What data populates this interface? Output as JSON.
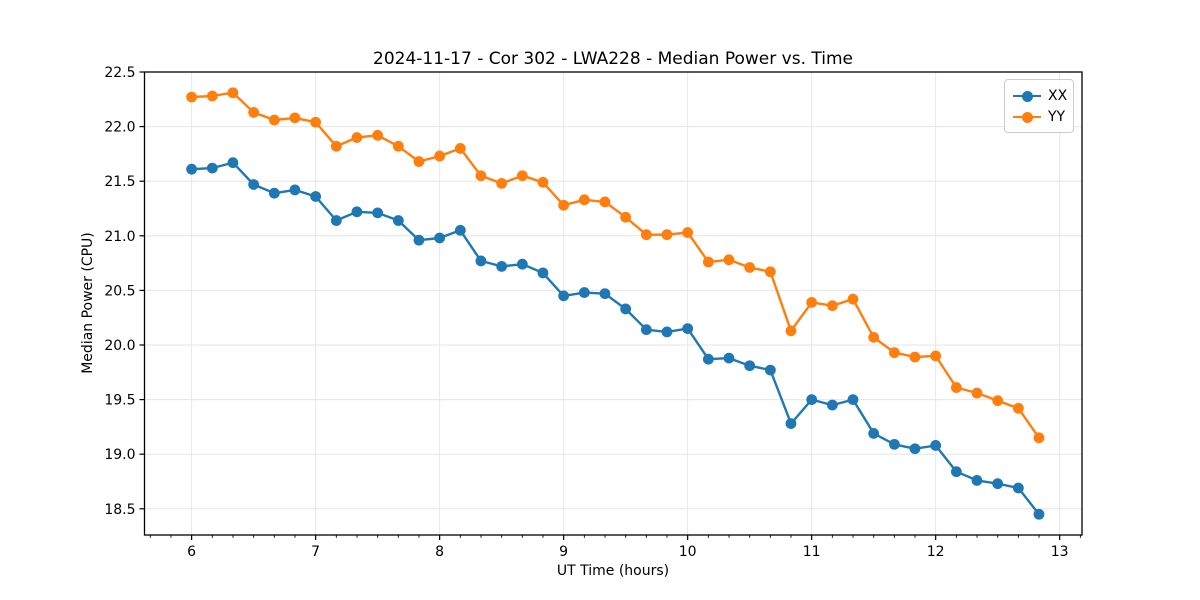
{
  "chart_data": {
    "type": "line",
    "title": "2024-11-17 - Cor 302 - LWA228 - Median Power vs. Time",
    "xlabel": "UT Time (hours)",
    "ylabel": "Median Power (CPU)",
    "xlim": [
      5.62,
      13.18
    ],
    "ylim": [
      18.26,
      22.5
    ],
    "xticks": [
      6,
      7,
      8,
      9,
      10,
      11,
      12,
      13
    ],
    "yticks": [
      18.5,
      19.0,
      19.5,
      20.0,
      20.5,
      21.0,
      21.5,
      22.0,
      22.5
    ],
    "x_minor_step": 0.16667,
    "grid": true,
    "legend_position": "upper right",
    "background_color": "#ffffff",
    "grid_color": "#e6e6e6",
    "spine_color": "#000000",
    "x": [
      6.0,
      6.167,
      6.333,
      6.5,
      6.667,
      6.833,
      7.0,
      7.167,
      7.333,
      7.5,
      7.667,
      7.833,
      8.0,
      8.167,
      8.333,
      8.5,
      8.667,
      8.833,
      9.0,
      9.167,
      9.333,
      9.5,
      9.667,
      9.833,
      10.0,
      10.167,
      10.333,
      10.5,
      10.667,
      10.833,
      11.0,
      11.167,
      11.333,
      11.5,
      11.667,
      11.833,
      12.0,
      12.167,
      12.333,
      12.5,
      12.667,
      12.833
    ],
    "series": [
      {
        "name": "XX",
        "color": "#1f77b4",
        "values": [
          21.61,
          21.62,
          21.67,
          21.47,
          21.39,
          21.42,
          21.36,
          21.14,
          21.22,
          21.21,
          21.14,
          20.96,
          20.98,
          21.05,
          20.77,
          20.72,
          20.74,
          20.66,
          20.45,
          20.48,
          20.47,
          20.33,
          20.14,
          20.12,
          20.15,
          19.87,
          19.88,
          19.81,
          19.77,
          19.28,
          19.5,
          19.45,
          19.5,
          19.19,
          19.09,
          19.05,
          19.08,
          18.84,
          18.76,
          18.73,
          18.69,
          18.45
        ]
      },
      {
        "name": "YY",
        "color": "#ff7f0e",
        "values": [
          22.27,
          22.28,
          22.31,
          22.13,
          22.06,
          22.08,
          22.04,
          21.82,
          21.9,
          21.92,
          21.82,
          21.68,
          21.73,
          21.8,
          21.55,
          21.48,
          21.55,
          21.49,
          21.28,
          21.33,
          21.31,
          21.17,
          21.01,
          21.01,
          21.03,
          20.76,
          20.78,
          20.71,
          20.67,
          20.13,
          20.39,
          20.36,
          20.42,
          20.07,
          19.93,
          19.89,
          19.9,
          19.61,
          19.56,
          19.49,
          19.42,
          19.15
        ]
      }
    ]
  }
}
